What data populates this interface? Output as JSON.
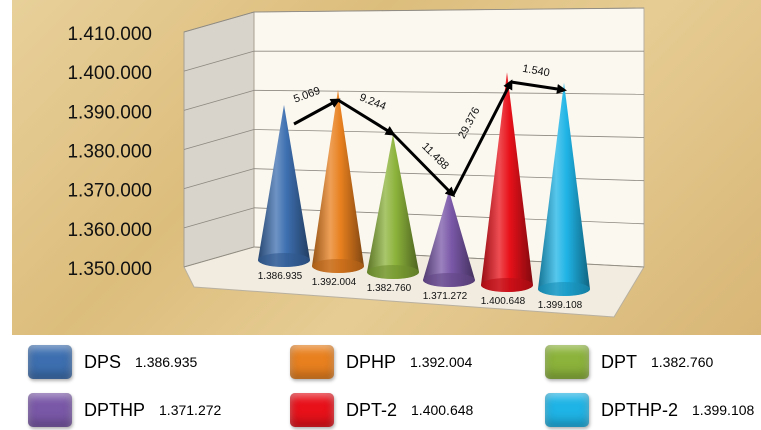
{
  "chart_data": {
    "type": "bar",
    "style": "3d-cone",
    "categories": [
      "DPS",
      "DPHP",
      "DPT",
      "DPTHP",
      "DPT-2",
      "DPTHP-2"
    ],
    "values": [
      1386.935,
      1392.004,
      1382.76,
      1371.272,
      1400.648,
      1399.108
    ],
    "value_labels": [
      "1.386.935",
      "1.392.004",
      "1.382.760",
      "1.371.272",
      "1.400.648",
      "1.399.108"
    ],
    "colors": [
      "#3d6fb0",
      "#e8801f",
      "#8cb33b",
      "#7a58a8",
      "#e8111a",
      "#1fb4e6"
    ],
    "ylim": [
      1350,
      1410
    ],
    "yticks": [
      1350,
      1360,
      1370,
      1380,
      1390,
      1400,
      1410
    ],
    "ytick_labels": [
      "1.350.000",
      "1.360.000",
      "1.370.000",
      "1.380.000",
      "1.390.000",
      "1.400.000",
      "1.410.000"
    ],
    "grid": true,
    "arrow_annotations": [
      "5.069",
      "9.244",
      "11.488",
      "29.376",
      "1.540"
    ],
    "legend": {
      "placement": "bottom",
      "entries": [
        {
          "name": "DPS",
          "value": "1.386.935"
        },
        {
          "name": "DPHP",
          "value": "1.392.004"
        },
        {
          "name": "DPT",
          "value": "1.382.760"
        },
        {
          "name": "DPTHP",
          "value": "1.371.272"
        },
        {
          "name": "DPT-2",
          "value": "1.400.648"
        },
        {
          "name": "DPTHP-2",
          "value": "1.399.108"
        }
      ]
    }
  }
}
